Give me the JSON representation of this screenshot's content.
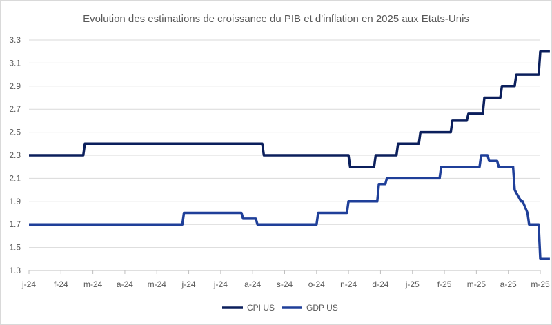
{
  "chart_data": {
    "type": "line",
    "title": "Evolution des estimations de croissance du PIB et d'inflation en 2025 aux Etats-Unis",
    "xlabel": "",
    "ylabel": "",
    "ylim": [
      1.3,
      3.3
    ],
    "y_ticks": [
      "1.3",
      "1.5",
      "1.7",
      "1.9",
      "2.1",
      "2.3",
      "2.5",
      "2.7",
      "2.9",
      "3.1",
      "3.3"
    ],
    "x_ticks": [
      "j-24",
      "f-24",
      "m-24",
      "a-24",
      "m-24",
      "j-24",
      "j-24",
      "a-24",
      "s-24",
      "o-24",
      "n-24",
      "d-24",
      "j-25",
      "f-25",
      "m-25",
      "a-25",
      "m-25"
    ],
    "grid": "horizontal",
    "legend_position": "bottom",
    "colors": {
      "CPI US": "#0b1f5c",
      "GDP US": "#1f3f99"
    },
    "series": [
      {
        "name": "CPI US",
        "x": [
          0.0,
          1.7,
          1.75,
          7.3,
          7.35,
          10.0,
          10.05,
          10.8,
          10.85,
          11.5,
          11.55,
          12.2,
          12.25,
          13.2,
          13.25,
          13.7,
          13.75,
          14.2,
          14.25,
          14.75,
          14.8,
          15.2,
          15.25,
          15.95,
          16.0,
          16.3
        ],
        "values": [
          2.3,
          2.3,
          2.4,
          2.4,
          2.3,
          2.3,
          2.2,
          2.2,
          2.3,
          2.3,
          2.4,
          2.4,
          2.5,
          2.5,
          2.6,
          2.6,
          2.66,
          2.66,
          2.8,
          2.8,
          2.9,
          2.9,
          3.0,
          3.0,
          3.2,
          3.2
        ]
      },
      {
        "name": "GDP US",
        "x": [
          0.0,
          4.8,
          4.85,
          6.65,
          6.7,
          7.1,
          7.15,
          9.0,
          9.05,
          9.95,
          10.0,
          10.9,
          10.95,
          11.15,
          11.2,
          12.85,
          12.9,
          14.1,
          14.15,
          14.35,
          14.4,
          14.65,
          14.7,
          15.15,
          15.2,
          15.4,
          15.45,
          15.6,
          15.65,
          15.95,
          16.0,
          16.3
        ],
        "values": [
          1.7,
          1.7,
          1.8,
          1.8,
          1.75,
          1.75,
          1.7,
          1.7,
          1.8,
          1.8,
          1.9,
          1.9,
          2.05,
          2.05,
          2.1,
          2.1,
          2.2,
          2.2,
          2.3,
          2.3,
          2.25,
          2.25,
          2.2,
          2.2,
          2.0,
          1.9,
          1.9,
          1.8,
          1.7,
          1.7,
          1.4,
          1.4
        ]
      }
    ]
  }
}
